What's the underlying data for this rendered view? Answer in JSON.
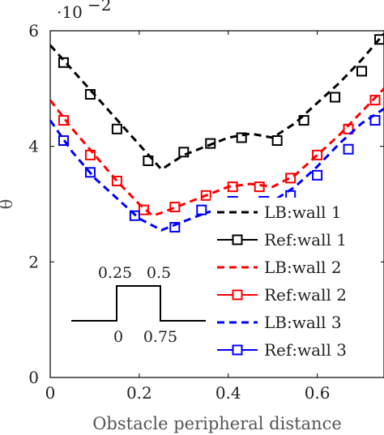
{
  "chart_data": {
    "type": "line",
    "title": "",
    "xlabel": "Obstacle peripheral distance",
    "ylabel": "θ",
    "y_scale_label": "·10",
    "y_scale_exponent": "−2",
    "xlim": [
      0,
      0.75
    ],
    "ylim": [
      0,
      6
    ],
    "x_ticks": [
      0,
      0.2,
      0.4,
      0.6
    ],
    "x_tick_labels": [
      "0",
      "0.2",
      "0.4",
      "0.6"
    ],
    "y_ticks": [
      0,
      2,
      4,
      6
    ],
    "y_tick_labels": [
      "0",
      "2",
      "4",
      "6"
    ],
    "grid": false,
    "legend_position": "right",
    "series": [
      {
        "name": "LB:wall 1",
        "color": "#000000",
        "style": "dashed",
        "marker": "none",
        "x": [
          0,
          0.25,
          0.3,
          0.35,
          0.4,
          0.45,
          0.5,
          0.55,
          0.6,
          0.65,
          0.7,
          0.75
        ],
        "y": [
          5.75,
          3.6,
          3.85,
          4.0,
          4.15,
          4.22,
          4.15,
          4.4,
          4.75,
          5.1,
          5.5,
          5.95
        ]
      },
      {
        "name": "Ref:wall 1",
        "color": "#000000",
        "style": "none",
        "marker": "square",
        "x": [
          0.03,
          0.09,
          0.15,
          0.22,
          0.3,
          0.36,
          0.43,
          0.51,
          0.57,
          0.64,
          0.7,
          0.74
        ],
        "y": [
          5.45,
          4.9,
          4.3,
          3.75,
          3.9,
          4.05,
          4.15,
          4.1,
          4.45,
          4.85,
          5.3,
          5.85
        ]
      },
      {
        "name": "LB:wall 2",
        "color": "#ff0000",
        "style": "dashed",
        "marker": "none",
        "x": [
          0,
          0.05,
          0.1,
          0.15,
          0.2,
          0.23,
          0.25,
          0.3,
          0.35,
          0.4,
          0.45,
          0.5,
          0.55,
          0.6,
          0.65,
          0.7,
          0.75
        ],
        "y": [
          4.8,
          4.3,
          3.85,
          3.4,
          3.0,
          2.8,
          2.85,
          3.0,
          3.15,
          3.3,
          3.35,
          3.3,
          3.5,
          3.85,
          4.2,
          4.6,
          5.0
        ],
        "marker_x": [
          0.03,
          0.09,
          0.15,
          0.21,
          0.28,
          0.35,
          0.41,
          0.47,
          0.54,
          0.6,
          0.67,
          0.73
        ],
        "marker_y": [
          4.45,
          3.85,
          3.4,
          2.9,
          2.95,
          3.15,
          3.3,
          3.3,
          3.45,
          3.85,
          4.3,
          4.8
        ]
      },
      {
        "name": "Ref:wall 2",
        "color": "#ff0000",
        "style": "none",
        "marker": "square",
        "x": [],
        "y": []
      },
      {
        "name": "LB:wall 3",
        "color": "#0000ff",
        "style": "dashed",
        "marker": "none",
        "x": [
          0,
          0.05,
          0.1,
          0.15,
          0.2,
          0.25,
          0.3,
          0.35,
          0.4,
          0.45,
          0.5,
          0.55,
          0.6,
          0.65,
          0.7,
          0.75
        ],
        "y": [
          4.45,
          3.9,
          3.45,
          3.1,
          2.75,
          2.55,
          2.7,
          2.85,
          2.95,
          3.05,
          3.05,
          3.3,
          3.65,
          4.05,
          4.4,
          4.65
        ],
        "marker_x": [
          0.03,
          0.09,
          0.19,
          0.28,
          0.34,
          0.41,
          0.48,
          0.54,
          0.6,
          0.67,
          0.73
        ],
        "marker_y": [
          4.1,
          3.55,
          2.8,
          2.6,
          2.9,
          3.05,
          3.05,
          3.15,
          3.5,
          3.95,
          4.45
        ]
      },
      {
        "name": "Ref:wall 3",
        "color": "#0000ff",
        "style": "none",
        "marker": "square",
        "x": [],
        "y": []
      }
    ],
    "inset": {
      "labels_top": [
        "0.25",
        "0.5"
      ],
      "labels_bottom": [
        "0",
        "0.75"
      ]
    }
  }
}
